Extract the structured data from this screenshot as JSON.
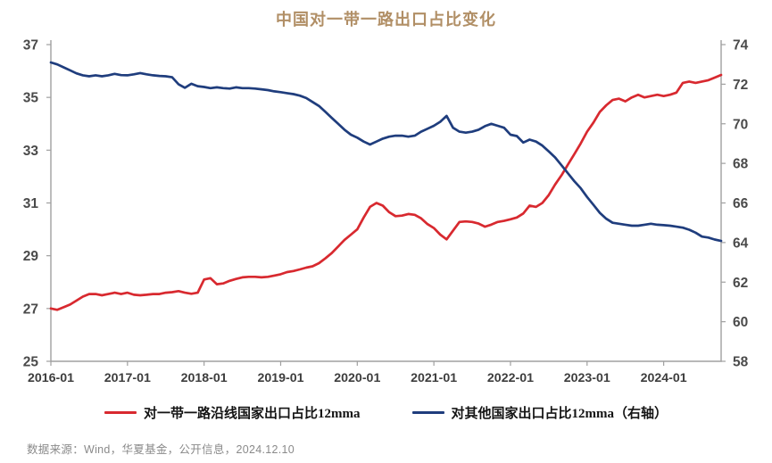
{
  "title": "中国对一带一路出口占比变化",
  "footer": "数据来源：Wind，华夏基金，公开信息，2024.12.10",
  "legend": {
    "items": [
      {
        "label": "对一带一路沿线国家出口占比12mma",
        "color": "#d8292f"
      },
      {
        "label": "对其他国家出口占比12mma（右轴）",
        "color": "#1f3d7d"
      }
    ]
  },
  "chart_data": {
    "type": "line",
    "title": "中国对一带一路出口占比变化",
    "x_frequency": "monthly",
    "x_start": "2016-01",
    "x_end": "2024-10",
    "x_tick_labels": [
      "2016-01",
      "2017-01",
      "2018-01",
      "2019-01",
      "2020-01",
      "2021-01",
      "2022-01",
      "2023-01",
      "2024-01"
    ],
    "left_axis": {
      "range": [
        25,
        37
      ],
      "ticks": [
        37,
        35,
        33,
        31,
        29,
        27,
        25
      ]
    },
    "right_axis": {
      "range": [
        58,
        74
      ],
      "ticks": [
        74,
        72,
        70,
        68,
        66,
        64,
        62,
        60,
        58
      ]
    },
    "grid": false,
    "legend_position": "bottom",
    "series": [
      {
        "name": "对一带一路沿线国家出口占比12mma",
        "axis": "left",
        "color": "#d8292f",
        "values": [
          27.0,
          26.95,
          27.05,
          27.15,
          27.3,
          27.45,
          27.55,
          27.55,
          27.5,
          27.55,
          27.6,
          27.55,
          27.6,
          27.52,
          27.5,
          27.52,
          27.55,
          27.55,
          27.6,
          27.62,
          27.66,
          27.6,
          27.56,
          27.6,
          28.1,
          28.15,
          27.92,
          27.95,
          28.05,
          28.12,
          28.18,
          28.2,
          28.2,
          28.18,
          28.2,
          28.25,
          28.3,
          28.38,
          28.42,
          28.48,
          28.55,
          28.6,
          28.72,
          28.9,
          29.1,
          29.35,
          29.6,
          29.8,
          30.0,
          30.45,
          30.85,
          31.0,
          30.9,
          30.65,
          30.5,
          30.52,
          30.58,
          30.55,
          30.42,
          30.2,
          30.05,
          29.8,
          29.62,
          29.95,
          30.28,
          30.3,
          30.28,
          30.22,
          30.1,
          30.18,
          30.28,
          30.32,
          30.38,
          30.45,
          30.6,
          30.9,
          30.85,
          31.0,
          31.3,
          31.7,
          32.05,
          32.45,
          32.85,
          33.25,
          33.7,
          34.05,
          34.45,
          34.7,
          34.9,
          34.95,
          34.85,
          35.0,
          35.1,
          35.0,
          35.05,
          35.1,
          35.05,
          35.1,
          35.18,
          35.55,
          35.6,
          35.55,
          35.6,
          35.65,
          35.75,
          35.85
        ]
      },
      {
        "name": "对其他国家出口占比12mma（右轴）",
        "axis": "right",
        "color": "#1f3d7d",
        "values": [
          73.1,
          73.0,
          72.85,
          72.7,
          72.55,
          72.45,
          72.4,
          72.45,
          72.4,
          72.45,
          72.52,
          72.46,
          72.45,
          72.5,
          72.56,
          72.5,
          72.45,
          72.42,
          72.4,
          72.35,
          72.0,
          71.82,
          72.02,
          71.9,
          71.86,
          71.8,
          71.84,
          71.8,
          71.78,
          71.84,
          71.8,
          71.8,
          71.78,
          71.74,
          71.7,
          71.64,
          71.6,
          71.55,
          71.5,
          71.42,
          71.3,
          71.1,
          70.9,
          70.6,
          70.3,
          70.0,
          69.7,
          69.45,
          69.3,
          69.1,
          68.95,
          69.1,
          69.25,
          69.35,
          69.4,
          69.4,
          69.35,
          69.4,
          69.6,
          69.75,
          69.9,
          70.1,
          70.4,
          69.8,
          69.6,
          69.55,
          69.6,
          69.7,
          69.88,
          70.0,
          69.9,
          69.8,
          69.45,
          69.38,
          69.05,
          69.2,
          69.1,
          68.9,
          68.6,
          68.3,
          67.9,
          67.5,
          67.1,
          66.75,
          66.3,
          65.9,
          65.5,
          65.2,
          65.0,
          64.95,
          64.9,
          64.85,
          64.85,
          64.9,
          64.95,
          64.9,
          64.88,
          64.85,
          64.8,
          64.75,
          64.65,
          64.5,
          64.3,
          64.25,
          64.15,
          64.08
        ]
      }
    ]
  }
}
